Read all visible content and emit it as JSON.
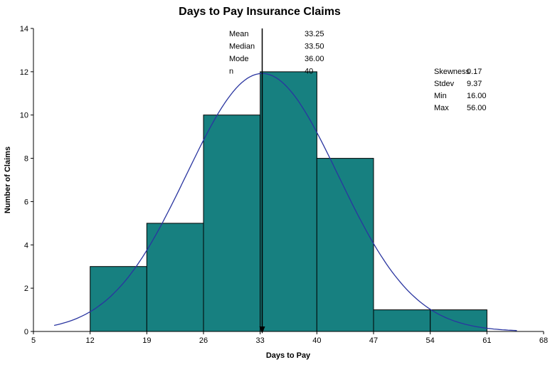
{
  "chart_data": {
    "type": "bar",
    "subtype": "histogram-with-normal-curve",
    "title": "Days to Pay Insurance Claims",
    "xlabel": "Days to Pay",
    "ylabel": "Number of Claims",
    "xlim": [
      5,
      68
    ],
    "ylim": [
      0,
      14
    ],
    "x_ticks": [
      5,
      12,
      19,
      26,
      33,
      40,
      47,
      54,
      61,
      68
    ],
    "y_ticks": [
      0,
      2,
      4,
      6,
      8,
      10,
      12,
      14
    ],
    "grid": false,
    "legend": "none",
    "bin_width": 7,
    "bin_starts": [
      12,
      19,
      26,
      33,
      40,
      47,
      54
    ],
    "counts": [
      3,
      5,
      10,
      12,
      8,
      1,
      1
    ],
    "normal_curve": {
      "mean": 33.25,
      "stdev": 9.37,
      "n": 40
    },
    "mean_line_x": 33.25,
    "stats_center": [
      {
        "label": "Mean",
        "value": "33.25"
      },
      {
        "label": "Median",
        "value": "33.50"
      },
      {
        "label": "Mode",
        "value": "36.00"
      },
      {
        "label": "n",
        "value": "40"
      }
    ],
    "stats_right": [
      {
        "label": "Skewness",
        "value": "0.17"
      },
      {
        "label": "Stdev",
        "value": "9.37"
      },
      {
        "label": "Min",
        "value": "16.00"
      },
      {
        "label": "Max",
        "value": "56.00"
      }
    ],
    "colors": {
      "bar_fill": "#178080",
      "bar_stroke": "#000000",
      "curve": "#2A35A0",
      "mean_line": "#000000",
      "axis": "#000000",
      "background": "#FFFFFF"
    }
  }
}
